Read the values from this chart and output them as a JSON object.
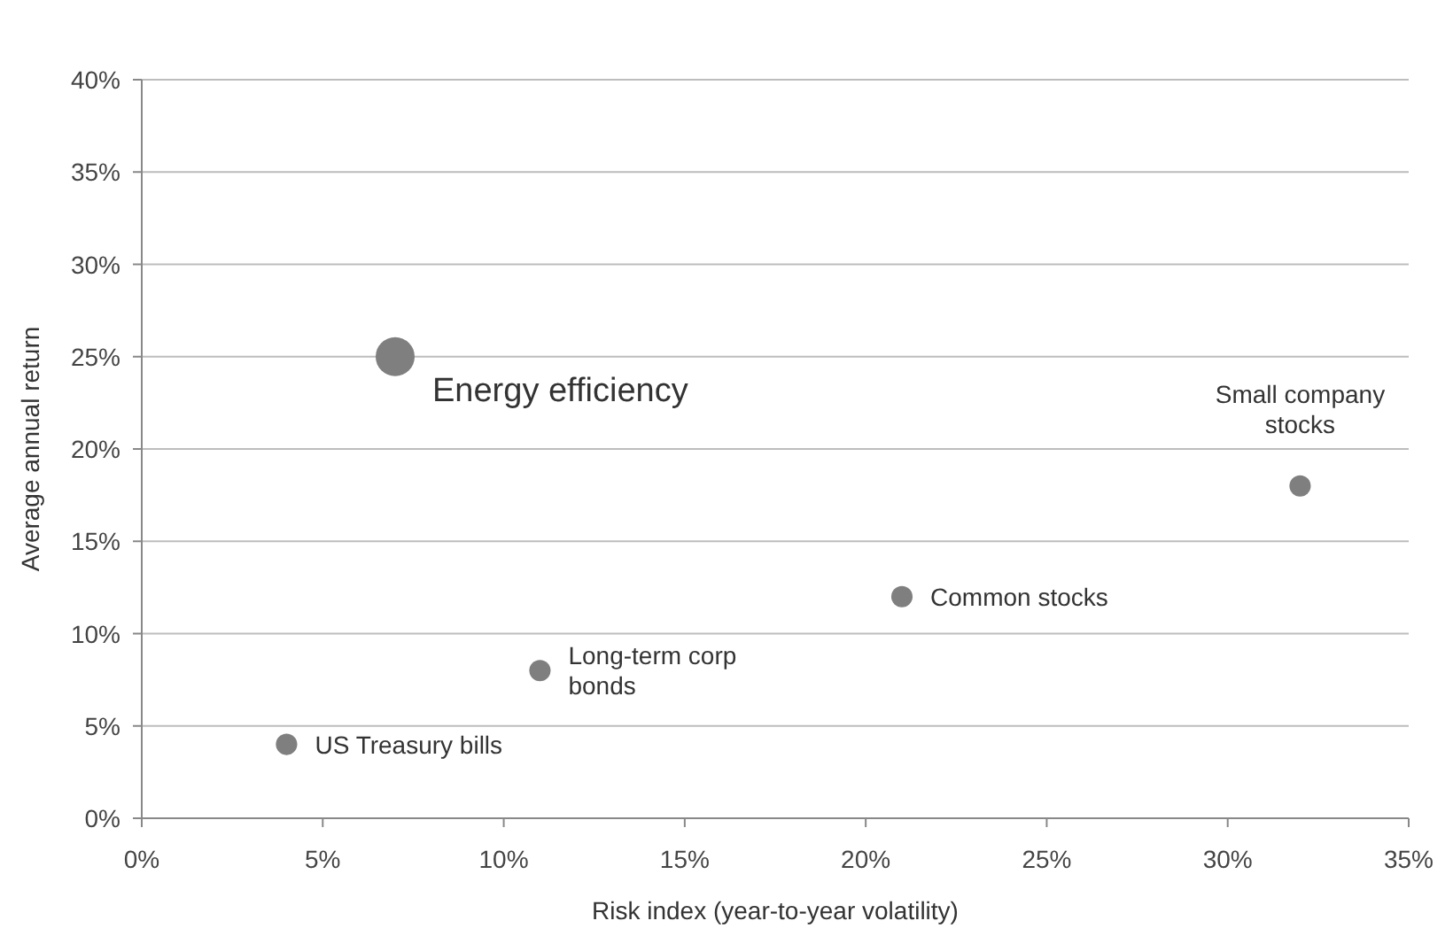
{
  "chart_data": {
    "type": "bubble",
    "xlabel": "Risk index (year-to-year volatility)",
    "ylabel": "Average annual return",
    "x": [
      4,
      7,
      11,
      21,
      32
    ],
    "values": [
      4,
      25,
      8,
      12,
      18
    ],
    "sizes": [
      0.3,
      1,
      0.3,
      0.3,
      0.3
    ],
    "color": "#7f7f7f",
    "xlim": [
      0,
      35
    ],
    "xticks": [
      {
        "value": 0,
        "label": "0%"
      },
      {
        "value": 5,
        "label": "5%"
      },
      {
        "value": 10,
        "label": "10%"
      },
      {
        "value": 15,
        "label": "15%"
      },
      {
        "value": 20,
        "label": "20%"
      },
      {
        "value": 25,
        "label": "25%"
      },
      {
        "value": 30,
        "label": "30%"
      },
      {
        "value": 35,
        "label": "35%"
      }
    ],
    "ylim": [
      0,
      40
    ],
    "yticks": [
      {
        "value": 0,
        "label": "0%"
      },
      {
        "value": 5,
        "label": "5%"
      },
      {
        "value": 10,
        "label": "10%"
      },
      {
        "value": 15,
        "label": "15%"
      },
      {
        "value": 20,
        "label": "20%"
      },
      {
        "value": 25,
        "label": "25%"
      },
      {
        "value": 30,
        "label": "30%"
      },
      {
        "value": 35,
        "label": "35%"
      },
      {
        "value": 40,
        "label": "40%"
      }
    ],
    "grid": "y",
    "annotations": [
      {
        "text": "US Treasury bills",
        "x": 4,
        "y": 4
      },
      {
        "text": "Energy efficiency",
        "x": 7,
        "y": 25
      },
      {
        "text": "Long-term corp\nbonds",
        "x": 11,
        "y": 8
      },
      {
        "text": "Common stocks",
        "x": 21,
        "y": 12
      },
      {
        "text": "Small company\nstocks",
        "x": 32,
        "y": 18
      }
    ]
  }
}
